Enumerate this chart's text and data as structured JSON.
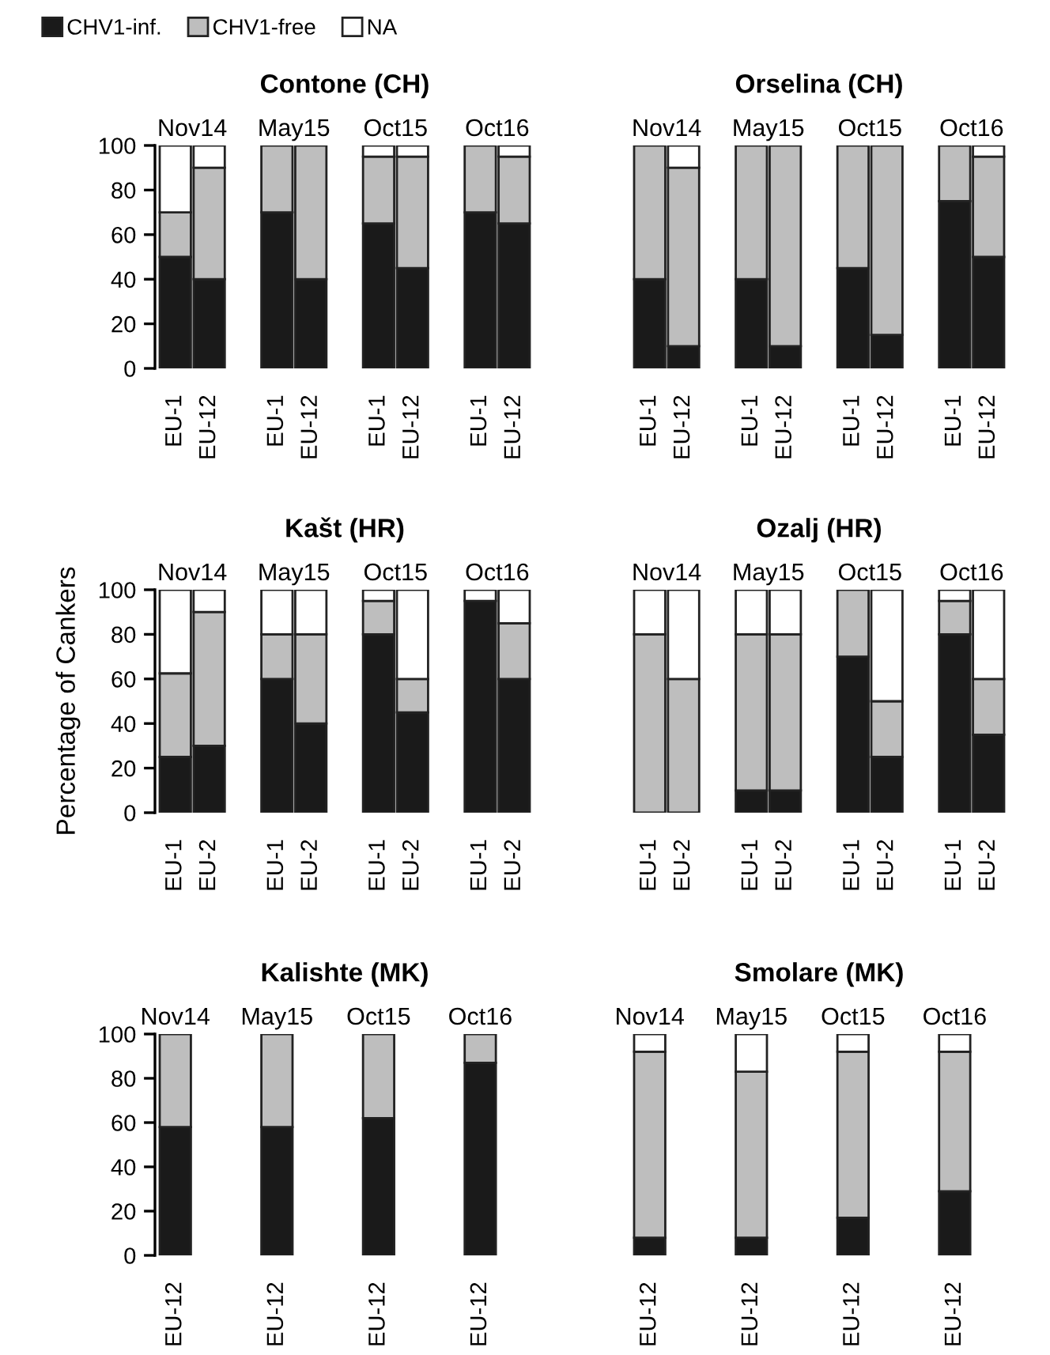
{
  "chart_data": [
    {
      "type": "bar",
      "stacked": true,
      "title": "Contone (CH)",
      "legend": "top",
      "annotations": [
        "Nov14",
        "May15",
        "Oct15",
        "Oct16"
      ],
      "categories": [
        "EU-1",
        "EU-12",
        null,
        "EU-1",
        "EU-12",
        null,
        "EU-1",
        "EU-12",
        null,
        "EU-1",
        "EU-12"
      ],
      "ylim": [
        0,
        100
      ],
      "yticks": [
        0,
        20,
        40,
        60,
        80,
        100
      ],
      "series": [
        {
          "name": "CHV1-inf.",
          "color": "#1a1a1a",
          "values": [
            50,
            40,
            null,
            70,
            40,
            null,
            65,
            45,
            null,
            70,
            65
          ]
        },
        {
          "name": "CHV1-free",
          "color": "#bebebe",
          "values": [
            20,
            50,
            null,
            30,
            60,
            null,
            30,
            50,
            null,
            30,
            30
          ]
        },
        {
          "name": "NA",
          "color": "#ffffff",
          "values": [
            30,
            10,
            null,
            0,
            0,
            null,
            5,
            5,
            null,
            0,
            5
          ]
        }
      ]
    },
    {
      "type": "bar",
      "stacked": true,
      "title": "Orselina (CH)",
      "tick_labels": "x",
      "annotations": [
        "Nov14",
        "May15",
        "Oct15",
        "Oct16"
      ],
      "categories": [
        "EU-1",
        "EU-12",
        null,
        "EU-1",
        "EU-12",
        null,
        "EU-1",
        "EU-12",
        null,
        "EU-1",
        "EU-12"
      ],
      "ylim": [
        0,
        100
      ],
      "yticks": [
        0,
        20,
        40,
        60,
        80,
        100
      ],
      "series": [
        {
          "color": "#1a1a1a",
          "values": [
            40,
            10,
            null,
            40,
            10,
            null,
            45,
            15,
            null,
            75,
            50
          ]
        },
        {
          "color": "#bebebe",
          "values": [
            60,
            80,
            null,
            60,
            90,
            null,
            55,
            85,
            null,
            25,
            45
          ]
        },
        {
          "color": "#ffffff",
          "values": [
            0,
            10,
            null,
            0,
            0,
            null,
            0,
            0,
            null,
            0,
            5
          ]
        }
      ]
    },
    {
      "type": "bar",
      "stacked": true,
      "title": "Kašt (HR)",
      "ylabel": "Percentage of Cankers",
      "annotations": [
        "Nov14",
        "May15",
        "Oct15",
        "Oct16"
      ],
      "categories": [
        "EU-1",
        "EU-2",
        null,
        "EU-1",
        "EU-2",
        null,
        "EU-1",
        "EU-2",
        null,
        "EU-1",
        "EU-2"
      ],
      "ylim": [
        0,
        100
      ],
      "yticks": [
        0,
        20,
        40,
        60,
        80,
        100
      ],
      "series": [
        {
          "color": "#1a1a1a",
          "values": [
            25,
            30,
            null,
            60,
            40,
            null,
            80,
            45,
            null,
            95,
            60
          ]
        },
        {
          "color": "#bebebe",
          "values": [
            37.5,
            60,
            null,
            20,
            40,
            null,
            15,
            15,
            null,
            0,
            25
          ]
        },
        {
          "color": "#ffffff",
          "values": [
            37.5,
            10,
            null,
            20,
            20,
            null,
            5,
            40,
            null,
            5,
            15
          ]
        }
      ]
    },
    {
      "type": "bar",
      "stacked": true,
      "title": "Ozalj (HR)",
      "tick_labels": "x",
      "annotations": [
        "Nov14",
        "May15",
        "Oct15",
        "Oct16"
      ],
      "categories": [
        "EU-1",
        "EU-2",
        null,
        "EU-1",
        "EU-2",
        null,
        "EU-1",
        "EU-2",
        null,
        "EU-1",
        "EU-2"
      ],
      "ylim": [
        0,
        100
      ],
      "yticks": [
        0,
        20,
        40,
        60,
        80,
        100
      ],
      "series": [
        {
          "color": "#1a1a1a",
          "values": [
            0,
            0,
            null,
            10,
            10,
            null,
            70,
            25,
            null,
            80,
            35
          ]
        },
        {
          "color": "#bebebe",
          "values": [
            80,
            60,
            null,
            70,
            70,
            null,
            30,
            25,
            null,
            15,
            25
          ]
        },
        {
          "color": "#ffffff",
          "values": [
            20,
            40,
            null,
            20,
            20,
            null,
            0,
            50,
            null,
            5,
            40
          ]
        }
      ]
    },
    {
      "type": "bar",
      "stacked": true,
      "title": "Kalishte (MK)",
      "annotations": [
        "Nov14",
        "May15",
        "Oct15",
        "Oct16"
      ],
      "categories": [
        "EU-12",
        "EU-12",
        "EU-12",
        "EU-12"
      ],
      "ylim": [
        0,
        100
      ],
      "yticks": [
        0,
        20,
        40,
        60,
        80,
        100
      ],
      "series": [
        {
          "color": "#1a1a1a",
          "values": [
            58,
            58,
            62,
            87
          ]
        },
        {
          "color": "#bebebe",
          "values": [
            42,
            42,
            38,
            13
          ]
        },
        {
          "color": "#ffffff",
          "values": [
            0,
            0,
            0,
            0
          ]
        }
      ]
    },
    {
      "type": "bar",
      "stacked": true,
      "title": "Smolare (MK)",
      "tick_labels": "x",
      "annotations": [
        "Nov14",
        "May15",
        "Oct15",
        "Oct16"
      ],
      "categories": [
        "EU-12",
        "EU-12",
        "EU-12",
        "EU-12"
      ],
      "ylim": [
        0,
        100
      ],
      "yticks": [
        0,
        20,
        40,
        60,
        80,
        100
      ],
      "series": [
        {
          "color": "#1a1a1a",
          "values": [
            8,
            8,
            17,
            29
          ]
        },
        {
          "color": "#bebebe",
          "values": [
            84,
            75,
            75,
            63
          ]
        },
        {
          "color": "#ffffff",
          "values": [
            8,
            17,
            8,
            8
          ]
        }
      ]
    }
  ]
}
